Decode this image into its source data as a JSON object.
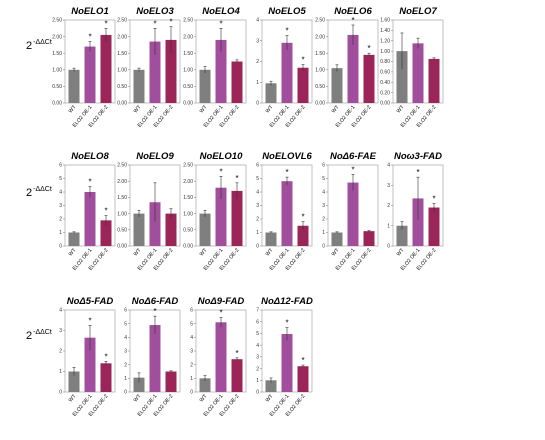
{
  "y_axis_label": {
    "base": "2",
    "exponent": "-ΔΔCt"
  },
  "colors": {
    "WT": "#7f7f7f",
    "ELO2 OE-1": "#a14f9c",
    "ELO2 OE-2": "#9b2458"
  },
  "chart_data": [
    {
      "type": "bar",
      "title": "NoELO1",
      "categories": [
        "WT",
        "ELO2 OE-1",
        "ELO2 OE-2"
      ],
      "values": [
        1.0,
        1.7,
        2.05
      ],
      "errors": [
        0.05,
        0.15,
        0.2
      ],
      "significant": [
        false,
        true,
        true
      ],
      "ylim": [
        0,
        2.5
      ],
      "yticks": [
        0,
        0.5,
        1,
        1.5,
        2,
        2.5
      ],
      "ytick_labels": [
        "0.00",
        "0.50",
        "1.00",
        "1.50",
        "2.00",
        "2.50"
      ]
    },
    {
      "type": "bar",
      "title": "NoELO3",
      "categories": [
        "WT",
        "ELO2 OE-1",
        "ELO2 OE-2"
      ],
      "values": [
        1.0,
        1.85,
        1.9
      ],
      "errors": [
        0.05,
        0.4,
        0.4
      ],
      "significant": [
        false,
        true,
        true
      ],
      "ylim": [
        0,
        2.5
      ],
      "yticks": [
        0,
        0.5,
        1,
        1.5,
        2,
        2.5
      ],
      "ytick_labels": [
        "0.00",
        "0.50",
        "1.00",
        "1.50",
        "2.00",
        "2.50"
      ]
    },
    {
      "type": "bar",
      "title": "NoELO4",
      "categories": [
        "WT",
        "ELO2 OE-1",
        "ELO2 OE-2"
      ],
      "values": [
        1.0,
        1.9,
        1.25
      ],
      "errors": [
        0.1,
        0.35,
        0.05
      ],
      "significant": [
        false,
        true,
        false
      ],
      "ylim": [
        0,
        2.5
      ],
      "yticks": [
        0,
        0.5,
        1,
        1.5,
        2,
        2.5
      ],
      "ytick_labels": [
        "0.00",
        "0.50",
        "1.00",
        "1.50",
        "2.00",
        "2.50"
      ]
    },
    {
      "type": "bar",
      "title": "NoELO5",
      "categories": [
        "WT",
        "ELO2 OE-1",
        "ELO2 OE-2"
      ],
      "values": [
        0.95,
        2.9,
        1.7
      ],
      "errors": [
        0.1,
        0.35,
        0.15
      ],
      "significant": [
        false,
        true,
        true
      ],
      "ylim": [
        0,
        4
      ],
      "yticks": [
        0,
        1,
        2,
        3,
        4
      ],
      "ytick_labels": [
        "0",
        "1",
        "2",
        "3",
        "4"
      ]
    },
    {
      "type": "bar",
      "title": "NoELO6",
      "categories": [
        "WT",
        "ELO2 OE-1",
        "ELO2 OE-2"
      ],
      "values": [
        1.05,
        2.05,
        1.45
      ],
      "errors": [
        0.1,
        0.3,
        0.05
      ],
      "significant": [
        false,
        true,
        true
      ],
      "ylim": [
        0,
        2.5
      ],
      "yticks": [
        0,
        0.5,
        1,
        1.5,
        2,
        2.5
      ],
      "ytick_labels": [
        "0.00",
        "0.50",
        "1.00",
        "1.50",
        "2.00",
        "2.50"
      ]
    },
    {
      "type": "bar",
      "title": "NoELO7",
      "categories": [
        "WT",
        "ELO2 OE-1",
        "ELO2 OE-2"
      ],
      "values": [
        1.0,
        1.15,
        0.85
      ],
      "errors": [
        0.35,
        0.1,
        0.02
      ],
      "significant": [
        false,
        false,
        false
      ],
      "ylim": [
        0,
        1.6
      ],
      "yticks": [
        0,
        0.2,
        0.4,
        0.6,
        0.8,
        1,
        1.2,
        1.4,
        1.6
      ],
      "ytick_labels": [
        "0.00",
        "0.20",
        "0.40",
        "0.60",
        "0.80",
        "1.00",
        "1.20",
        "1.40",
        "1.60"
      ]
    },
    {
      "type": "bar",
      "title": "NoELO8",
      "categories": [
        "WT",
        "ELO2 OE-1",
        "ELO2 OE-2"
      ],
      "values": [
        1.0,
        4.0,
        1.9
      ],
      "errors": [
        0.05,
        0.4,
        0.35
      ],
      "significant": [
        false,
        true,
        true
      ],
      "ylim": [
        0,
        6
      ],
      "yticks": [
        0,
        1,
        2,
        3,
        4,
        5,
        6
      ],
      "ytick_labels": [
        "0",
        "1",
        "2",
        "3",
        "4",
        "5",
        "6"
      ]
    },
    {
      "type": "bar",
      "title": "NoELO9",
      "categories": [
        "WT",
        "ELO2 OE-1",
        "ELO2 OE-2"
      ],
      "values": [
        1.0,
        1.35,
        1.0
      ],
      "errors": [
        0.1,
        0.6,
        0.15
      ],
      "significant": [
        false,
        false,
        false
      ],
      "ylim": [
        0,
        2.5
      ],
      "yticks": [
        0,
        0.5,
        1,
        1.5,
        2,
        2.5
      ],
      "ytick_labels": [
        "0.00",
        "0.50",
        "1.00",
        "1.50",
        "2.00",
        "2.50"
      ]
    },
    {
      "type": "bar",
      "title": "NoELO10",
      "categories": [
        "WT",
        "ELO2 OE-1",
        "ELO2 OE-2"
      ],
      "values": [
        1.0,
        1.8,
        1.7
      ],
      "errors": [
        0.1,
        0.35,
        0.25
      ],
      "significant": [
        false,
        true,
        true
      ],
      "ylim": [
        0,
        2.5
      ],
      "yticks": [
        0,
        0.5,
        1,
        1.5,
        2,
        2.5
      ],
      "ytick_labels": [
        "0.00",
        "0.50",
        "1.00",
        "1.50",
        "2.00",
        "2.50"
      ]
    },
    {
      "type": "bar",
      "title": "NoELOVL6",
      "categories": [
        "WT",
        "ELO2 OE-1",
        "ELO2 OE-2"
      ],
      "values": [
        1.0,
        4.8,
        1.5
      ],
      "errors": [
        0.05,
        0.3,
        0.3
      ],
      "significant": [
        false,
        true,
        true
      ],
      "ylim": [
        0,
        6
      ],
      "yticks": [
        0,
        1,
        2,
        3,
        4,
        5,
        6
      ],
      "ytick_labels": [
        "0",
        "1",
        "2",
        "3",
        "4",
        "5",
        "6"
      ]
    },
    {
      "type": "bar",
      "title": "NoΔ6-FAE",
      "categories": [
        "WT",
        "ELO2 OE-1",
        "ELO2 OE-2"
      ],
      "values": [
        1.0,
        4.7,
        1.1
      ],
      "errors": [
        0.05,
        0.6,
        0.05
      ],
      "significant": [
        false,
        true,
        false
      ],
      "ylim": [
        0,
        6
      ],
      "yticks": [
        0,
        1,
        2,
        3,
        4,
        5,
        6
      ],
      "ytick_labels": [
        "0",
        "1",
        "2",
        "3",
        "4",
        "5",
        "6"
      ]
    },
    {
      "type": "bar",
      "title": "Noω3-FAD",
      "categories": [
        "WT",
        "ELO2 OE-1",
        "ELO2 OE-2"
      ],
      "values": [
        1.0,
        2.35,
        1.9
      ],
      "errors": [
        0.2,
        1.05,
        0.2
      ],
      "significant": [
        false,
        true,
        true
      ],
      "ylim": [
        0,
        4
      ],
      "yticks": [
        0,
        1,
        2,
        3,
        4
      ],
      "ytick_labels": [
        "0",
        "1",
        "2",
        "3",
        "4"
      ]
    },
    {
      "type": "bar",
      "title": "NoΔ5-FAD",
      "categories": [
        "WT",
        "ELO2 OE-1",
        "ELO2 OE-2"
      ],
      "values": [
        1.0,
        2.65,
        1.4
      ],
      "errors": [
        0.2,
        0.6,
        0.1
      ],
      "significant": [
        false,
        true,
        true
      ],
      "ylim": [
        0,
        4
      ],
      "yticks": [
        0,
        1,
        2,
        3,
        4
      ],
      "ytick_labels": [
        "0",
        "1",
        "2",
        "3",
        "4"
      ]
    },
    {
      "type": "bar",
      "title": "NoΔ6-FAD",
      "categories": [
        "WT",
        "ELO2 OE-1",
        "ELO2 OE-2"
      ],
      "values": [
        1.05,
        4.9,
        1.5
      ],
      "errors": [
        0.35,
        0.65,
        0.05
      ],
      "significant": [
        false,
        true,
        false
      ],
      "ylim": [
        0,
        6
      ],
      "yticks": [
        0,
        1,
        2,
        3,
        4,
        5,
        6
      ],
      "ytick_labels": [
        "0",
        "1",
        "2",
        "3",
        "4",
        "5",
        "6"
      ]
    },
    {
      "type": "bar",
      "title": "NoΔ9-FAD",
      "categories": [
        "WT",
        "ELO2 OE-1",
        "ELO2 OE-2"
      ],
      "values": [
        1.0,
        5.1,
        2.4
      ],
      "errors": [
        0.2,
        0.35,
        0.1
      ],
      "significant": [
        false,
        true,
        true
      ],
      "ylim": [
        0,
        6
      ],
      "yticks": [
        0,
        1,
        2,
        3,
        4,
        5,
        6
      ],
      "ytick_labels": [
        "0",
        "1",
        "2",
        "3",
        "4",
        "5",
        "6"
      ]
    },
    {
      "type": "bar",
      "title": "NoΔ12-FAD",
      "categories": [
        "WT",
        "ELO2 OE-1",
        "ELO2 OE-2"
      ],
      "values": [
        1.0,
        4.95,
        2.2
      ],
      "errors": [
        0.2,
        0.55,
        0.1
      ],
      "significant": [
        false,
        true,
        true
      ],
      "ylim": [
        0,
        7
      ],
      "yticks": [
        0,
        1,
        2,
        3,
        4,
        5,
        6,
        7
      ],
      "ytick_labels": [
        "0",
        "1",
        "2",
        "3",
        "4",
        "5",
        "6",
        "7"
      ]
    }
  ]
}
